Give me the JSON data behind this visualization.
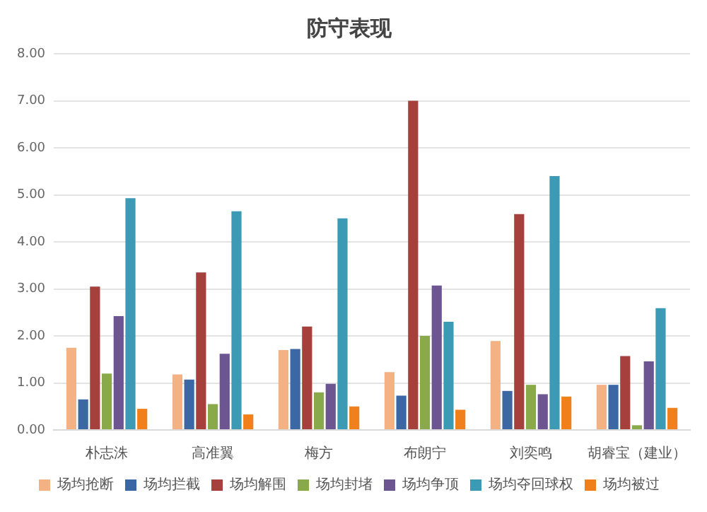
{
  "chart_data": {
    "type": "bar",
    "title": "防守表现",
    "categories": [
      "朴志洙",
      "高准翼",
      "梅方",
      "布朗宁",
      "刘奕鸣",
      "胡睿宝（建业）"
    ],
    "series": [
      {
        "name": "场均抢断",
        "color": "#f4b183",
        "values": [
          1.75,
          1.18,
          1.7,
          1.23,
          1.89,
          0.96
        ]
      },
      {
        "name": "场均拦截",
        "color": "#3b67a4",
        "values": [
          0.65,
          1.07,
          1.72,
          0.73,
          0.83,
          0.96
        ]
      },
      {
        "name": "场均解围",
        "color": "#a5403d",
        "values": [
          3.05,
          3.35,
          2.2,
          7.0,
          4.59,
          1.57
        ]
      },
      {
        "name": "场均封堵",
        "color": "#8aa94a",
        "values": [
          1.2,
          0.55,
          0.8,
          2.0,
          0.96,
          0.1
        ]
      },
      {
        "name": "场均争顶",
        "color": "#6d5592",
        "values": [
          2.42,
          1.62,
          0.98,
          3.07,
          0.76,
          1.46
        ]
      },
      {
        "name": "场均夺回球权",
        "color": "#3c9ab4",
        "values": [
          4.93,
          4.65,
          4.5,
          2.3,
          5.4,
          2.59
        ]
      },
      {
        "name": "场均被过",
        "color": "#f0801c",
        "values": [
          0.45,
          0.33,
          0.5,
          0.43,
          0.71,
          0.47
        ]
      }
    ],
    "ylim": [
      0,
      8
    ],
    "yticks": [
      {
        "value": 0,
        "label": "0.00"
      },
      {
        "value": 1,
        "label": "1.00"
      },
      {
        "value": 2,
        "label": "2.00"
      },
      {
        "value": 3,
        "label": "3.00"
      },
      {
        "value": 4,
        "label": "4.00"
      },
      {
        "value": 5,
        "label": "5.00"
      },
      {
        "value": 6,
        "label": "6.00"
      },
      {
        "value": 7,
        "label": "7.00"
      },
      {
        "value": 8,
        "label": "8.00"
      }
    ],
    "grid": "y",
    "legend": "bottom"
  }
}
